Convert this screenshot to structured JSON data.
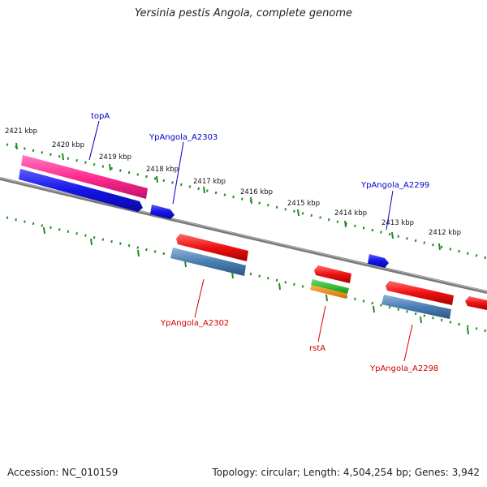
{
  "title": "Yersinia pestis Angola, complete genome",
  "footer": {
    "accession": "Accession: NC_010159",
    "summary": "Topology: circular; Length: 4,504,254 bp; Genes: 3,942"
  },
  "colors": {
    "backbone": "#7a7a7a",
    "ruler": "#228b22",
    "label_forward": "#0000c8",
    "label_reverse": "#d10000",
    "gene_pink": "#ff2d92",
    "gene_blue": "#1515e6",
    "gene_red": "#ee1111",
    "gene_steel": "#4a7fb4",
    "gene_green": "#22bb22",
    "gene_orange": "#ff8c00"
  },
  "ruler_labels": [
    "2421 kbp",
    "2420 kbp",
    "2419 kbp",
    "2418 kbp",
    "2417 kbp",
    "2416 kbp",
    "2415 kbp",
    "2414 kbp",
    "2413 kbp",
    "2412 kbp"
  ],
  "gene_labels": {
    "topA": "topA",
    "A2303": "YpAngola_A2303",
    "A2299": "YpAngola_A2299",
    "A2302": "YpAngola_A2302",
    "rstA": "rstA",
    "A2298": "YpAngola_A2298"
  }
}
